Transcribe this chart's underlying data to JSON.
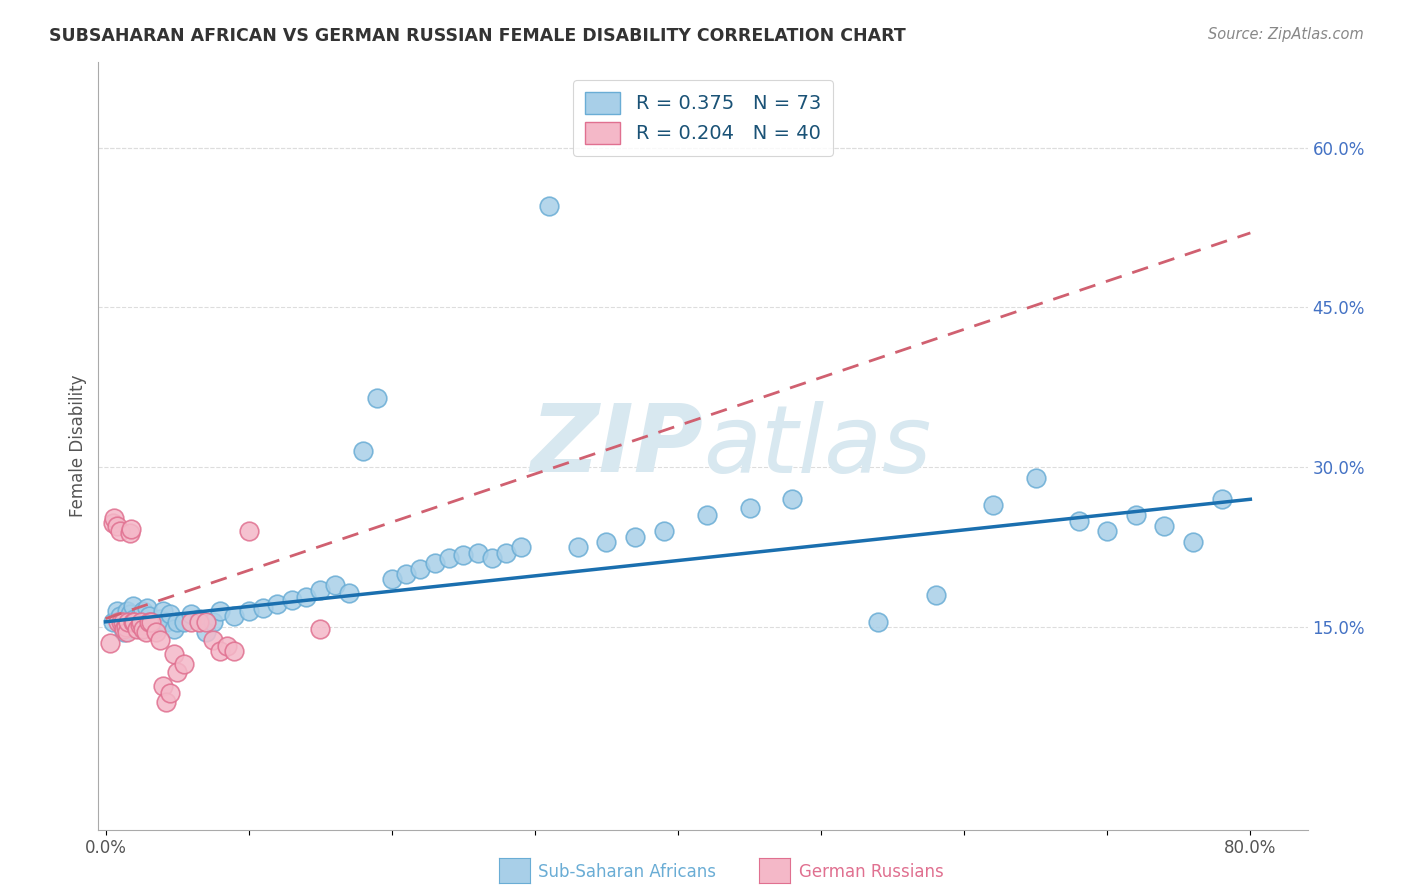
{
  "title": "SUBSAHARAN AFRICAN VS GERMAN RUSSIAN FEMALE DISABILITY CORRELATION CHART",
  "source": "Source: ZipAtlas.com",
  "ylabel": "Female Disability",
  "xlim": [
    -0.005,
    0.84
  ],
  "ylim": [
    -0.04,
    0.68
  ],
  "xticks": [
    0.0,
    0.1,
    0.2,
    0.3,
    0.4,
    0.5,
    0.6,
    0.7,
    0.8
  ],
  "xtick_labels": [
    "0.0%",
    "",
    "",
    "",
    "",
    "",
    "",
    "",
    "80.0%"
  ],
  "ytick_vals_right": [
    0.15,
    0.3,
    0.45,
    0.6
  ],
  "ytick_labels_right": [
    "15.0%",
    "30.0%",
    "45.0%",
    "60.0%"
  ],
  "blue_color": "#a8cfe8",
  "blue_edge_color": "#6aadd5",
  "pink_color": "#f4b8c8",
  "pink_edge_color": "#e07090",
  "trend_blue_color": "#1a6faf",
  "trend_pink_color": "#d06070",
  "watermark_color": "#d8e8f0",
  "legend_blue_label": "R = 0.375   N = 73",
  "legend_pink_label": "R = 0.204   N = 40",
  "legend_text_color": "#1a5276",
  "right_axis_color": "#4472c4",
  "title_color": "#333333",
  "source_color": "#888888",
  "grid_color": "#dddddd",
  "blue_scatter_x": [
    0.005,
    0.008,
    0.01,
    0.012,
    0.013,
    0.015,
    0.016,
    0.017,
    0.018,
    0.019,
    0.02,
    0.022,
    0.024,
    0.025,
    0.026,
    0.027,
    0.028,
    0.029,
    0.03,
    0.032,
    0.034,
    0.036,
    0.038,
    0.04,
    0.042,
    0.045,
    0.048,
    0.05,
    0.055,
    0.06,
    0.065,
    0.07,
    0.075,
    0.08,
    0.09,
    0.1,
    0.11,
    0.12,
    0.13,
    0.14,
    0.15,
    0.16,
    0.17,
    0.18,
    0.19,
    0.2,
    0.21,
    0.22,
    0.23,
    0.24,
    0.25,
    0.26,
    0.27,
    0.28,
    0.29,
    0.31,
    0.33,
    0.35,
    0.37,
    0.39,
    0.42,
    0.45,
    0.48,
    0.54,
    0.58,
    0.62,
    0.65,
    0.68,
    0.7,
    0.72,
    0.74,
    0.76,
    0.78
  ],
  "blue_scatter_y": [
    0.155,
    0.165,
    0.16,
    0.15,
    0.145,
    0.165,
    0.158,
    0.162,
    0.153,
    0.17,
    0.158,
    0.155,
    0.16,
    0.148,
    0.165,
    0.155,
    0.152,
    0.168,
    0.16,
    0.155,
    0.148,
    0.152,
    0.158,
    0.165,
    0.155,
    0.162,
    0.148,
    0.155,
    0.155,
    0.162,
    0.158,
    0.145,
    0.155,
    0.165,
    0.16,
    0.165,
    0.168,
    0.172,
    0.175,
    0.178,
    0.185,
    0.19,
    0.182,
    0.315,
    0.365,
    0.195,
    0.2,
    0.205,
    0.21,
    0.215,
    0.218,
    0.22,
    0.215,
    0.22,
    0.225,
    0.545,
    0.225,
    0.23,
    0.235,
    0.24,
    0.255,
    0.262,
    0.27,
    0.155,
    0.18,
    0.265,
    0.29,
    0.25,
    0.24,
    0.255,
    0.245,
    0.23,
    0.27
  ],
  "pink_scatter_x": [
    0.003,
    0.005,
    0.006,
    0.008,
    0.009,
    0.01,
    0.011,
    0.012,
    0.013,
    0.014,
    0.015,
    0.016,
    0.017,
    0.018,
    0.019,
    0.02,
    0.022,
    0.024,
    0.025,
    0.026,
    0.028,
    0.03,
    0.032,
    0.035,
    0.038,
    0.04,
    0.042,
    0.045,
    0.048,
    0.05,
    0.055,
    0.06,
    0.065,
    0.07,
    0.075,
    0.08,
    0.085,
    0.09,
    0.1,
    0.15
  ],
  "pink_scatter_y": [
    0.135,
    0.248,
    0.252,
    0.245,
    0.155,
    0.24,
    0.155,
    0.155,
    0.148,
    0.15,
    0.145,
    0.155,
    0.238,
    0.242,
    0.155,
    0.155,
    0.148,
    0.152,
    0.155,
    0.148,
    0.145,
    0.155,
    0.155,
    0.145,
    0.138,
    0.095,
    0.08,
    0.088,
    0.125,
    0.108,
    0.115,
    0.155,
    0.155,
    0.155,
    0.138,
    0.128,
    0.132,
    0.128,
    0.24,
    0.148
  ],
  "trend_blue_x0": 0.0,
  "trend_blue_x1": 0.8,
  "trend_blue_y0": 0.155,
  "trend_blue_y1": 0.27,
  "trend_pink_x0": 0.0,
  "trend_pink_x1": 0.8,
  "trend_pink_y0": 0.158,
  "trend_pink_y1": 0.52
}
